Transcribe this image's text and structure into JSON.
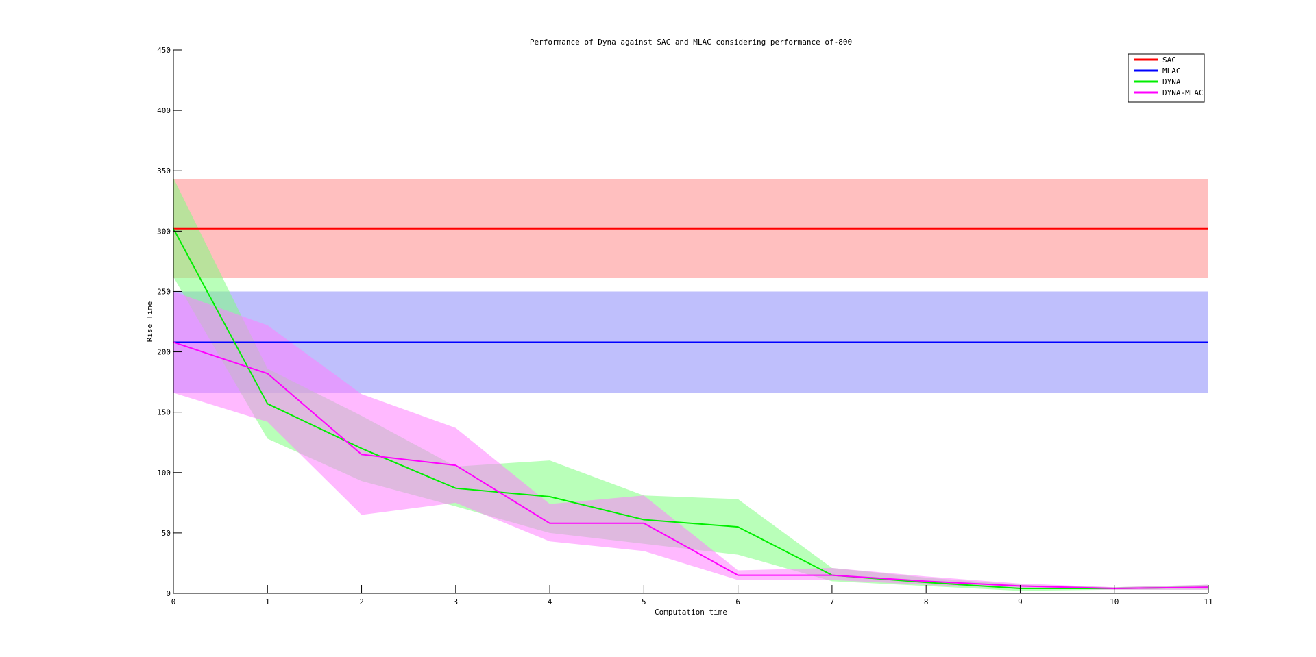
{
  "chart_data": {
    "type": "line",
    "title": "Performance of Dyna against SAC and MLAC considering performance of-800",
    "xlabel": "Computation time",
    "ylabel": "Rise Time",
    "xlim": [
      0,
      11
    ],
    "ylim": [
      0,
      450
    ],
    "xticks": [
      "0",
      "1",
      "2",
      "3",
      "4",
      "5",
      "6",
      "7",
      "8",
      "9",
      "10",
      "11"
    ],
    "yticks": [
      "0",
      "50",
      "100",
      "150",
      "200",
      "250",
      "300",
      "350",
      "400",
      "450"
    ],
    "grid": false,
    "legend_position": "top-right",
    "x": [
      0,
      1,
      2,
      3,
      4,
      5,
      6,
      7,
      8,
      9,
      10,
      11
    ],
    "series": [
      {
        "name": "SAC",
        "color": "#ff0000",
        "band_color": "#ffbfbf",
        "values": [
          302,
          302,
          302,
          302,
          302,
          302,
          302,
          302,
          302,
          302,
          302,
          302
        ],
        "upper": [
          343,
          343,
          343,
          343,
          343,
          343,
          343,
          343,
          343,
          343,
          343,
          343
        ],
        "lower": [
          261,
          261,
          261,
          261,
          261,
          261,
          261,
          261,
          261,
          261,
          261,
          261
        ]
      },
      {
        "name": "MLAC",
        "color": "#0000ff",
        "band_color": "#bfbffc",
        "values": [
          208,
          208,
          208,
          208,
          208,
          208,
          208,
          208,
          208,
          208,
          208,
          208
        ],
        "upper": [
          250,
          250,
          250,
          250,
          250,
          250,
          250,
          250,
          250,
          250,
          250,
          250
        ],
        "lower": [
          166,
          166,
          166,
          166,
          166,
          166,
          166,
          166,
          166,
          166,
          166,
          166
        ]
      },
      {
        "name": "DYNA",
        "color": "#00ee00",
        "band_color": "#7fff7f",
        "values": [
          302,
          157,
          120,
          87,
          80,
          61,
          55,
          15,
          9,
          4,
          4,
          5
        ],
        "upper": [
          344,
          186,
          147,
          105,
          110,
          81,
          78,
          21,
          13,
          7,
          5,
          7
        ],
        "lower": [
          262,
          128,
          93,
          72,
          50,
          41,
          32,
          10,
          6,
          2,
          3,
          3
        ]
      },
      {
        "name": "DYNA-MLAC",
        "color": "#ff00ff",
        "band_color": "#ff80ff",
        "values": [
          208,
          182,
          115,
          106,
          58,
          58,
          15,
          15,
          10,
          6,
          4,
          5
        ],
        "upper": [
          250,
          222,
          165,
          137,
          74,
          81,
          19,
          21,
          14,
          8,
          5,
          7
        ],
        "lower": [
          166,
          142,
          65,
          75,
          43,
          35,
          11,
          11,
          7,
          4,
          3,
          3
        ]
      }
    ]
  }
}
